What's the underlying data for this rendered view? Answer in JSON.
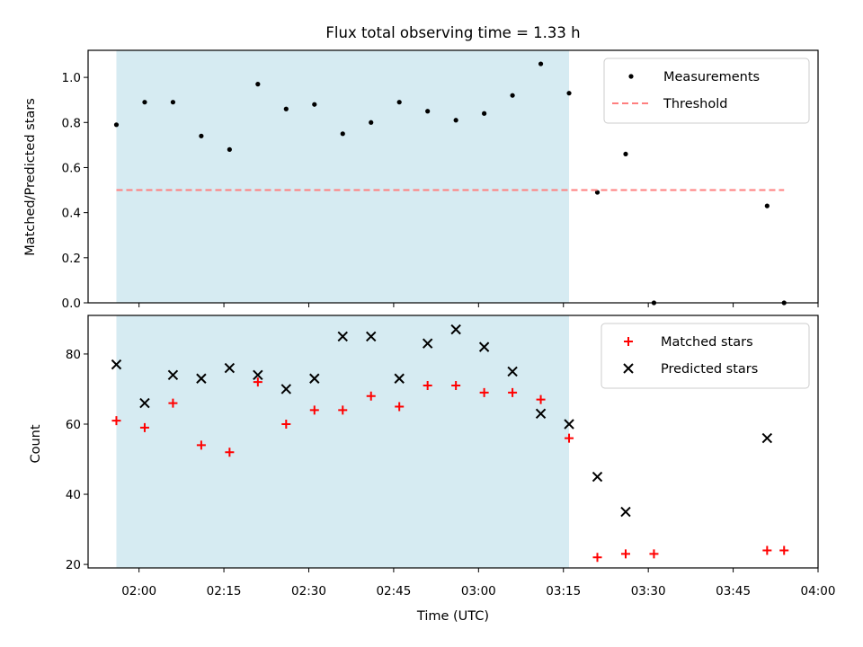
{
  "chart_data": {
    "title": "Flux total observing time = 1.33 h",
    "xlabel": "Time (UTC)",
    "x_ticks": [
      "02:00",
      "02:15",
      "02:30",
      "02:45",
      "03:00",
      "03:15",
      "03:30",
      "03:45",
      "04:00"
    ],
    "x_tick_values": [
      120,
      135,
      150,
      165,
      180,
      195,
      210,
      225,
      240
    ],
    "xlim": [
      "01:51",
      "04:00"
    ],
    "xlim_minutes": [
      111,
      240
    ],
    "highlight_span": {
      "from": "01:56",
      "to": "03:16",
      "color": "#add8e6"
    },
    "panels": [
      {
        "type": "scatter",
        "ylabel": "Matched/Predicted stars",
        "ylim": [
          0,
          1.12
        ],
        "y_ticks": [
          0.0,
          0.2,
          0.4,
          0.6,
          0.8,
          1.0
        ],
        "y_tick_labels": [
          "0.0",
          "0.2",
          "0.4",
          "0.6",
          "0.8",
          "1.0"
        ],
        "legend_position": "top-right",
        "series": [
          {
            "name": "Measurements",
            "marker": "dot",
            "color": "#000000",
            "x": [
              "01:56",
              "02:01",
              "02:06",
              "02:11",
              "02:16",
              "02:21",
              "02:26",
              "02:31",
              "02:36",
              "02:41",
              "02:46",
              "02:51",
              "02:56",
              "03:01",
              "03:06",
              "03:11",
              "03:16",
              "03:21",
              "03:26",
              "03:31",
              "03:51",
              "03:54"
            ],
            "y": [
              0.79,
              0.89,
              0.89,
              0.74,
              0.68,
              0.97,
              0.86,
              0.88,
              0.75,
              0.8,
              0.89,
              0.85,
              0.81,
              0.84,
              0.92,
              1.06,
              0.93,
              0.49,
              0.66,
              0.0,
              0.43,
              0.0
            ]
          },
          {
            "name": "Threshold",
            "style": "dashed",
            "color": "#ff7f7f",
            "x": [
              "01:56",
              "03:54"
            ],
            "y": [
              0.5,
              0.5
            ]
          }
        ]
      },
      {
        "type": "scatter",
        "ylabel": "Count",
        "ylim": [
          19,
          91
        ],
        "y_ticks": [
          20,
          40,
          60,
          80
        ],
        "y_tick_labels": [
          "20",
          "40",
          "60",
          "80"
        ],
        "legend_position": "top-right",
        "series": [
          {
            "name": "Matched stars",
            "marker": "plus",
            "color": "#ff0000",
            "x": [
              "01:56",
              "02:01",
              "02:06",
              "02:11",
              "02:16",
              "02:21",
              "02:26",
              "02:31",
              "02:36",
              "02:41",
              "02:46",
              "02:51",
              "02:56",
              "03:01",
              "03:06",
              "03:11",
              "03:16",
              "03:21",
              "03:26",
              "03:31",
              "03:51",
              "03:54"
            ],
            "y": [
              61,
              59,
              66,
              54,
              52,
              72,
              60,
              64,
              64,
              68,
              65,
              71,
              71,
              69,
              69,
              67,
              56,
              22,
              23,
              23,
              24,
              24
            ]
          },
          {
            "name": "Predicted stars",
            "marker": "x",
            "color": "#000000",
            "x": [
              "01:56",
              "02:01",
              "02:06",
              "02:11",
              "02:16",
              "02:21",
              "02:26",
              "02:31",
              "02:36",
              "02:41",
              "02:46",
              "02:51",
              "02:56",
              "03:01",
              "03:06",
              "03:11",
              "03:16",
              "03:21",
              "03:26",
              "03:51"
            ],
            "y": [
              77,
              66,
              74,
              73,
              76,
              74,
              70,
              73,
              85,
              85,
              73,
              83,
              87,
              82,
              75,
              63,
              60,
              45,
              35,
              56
            ]
          }
        ]
      }
    ]
  }
}
